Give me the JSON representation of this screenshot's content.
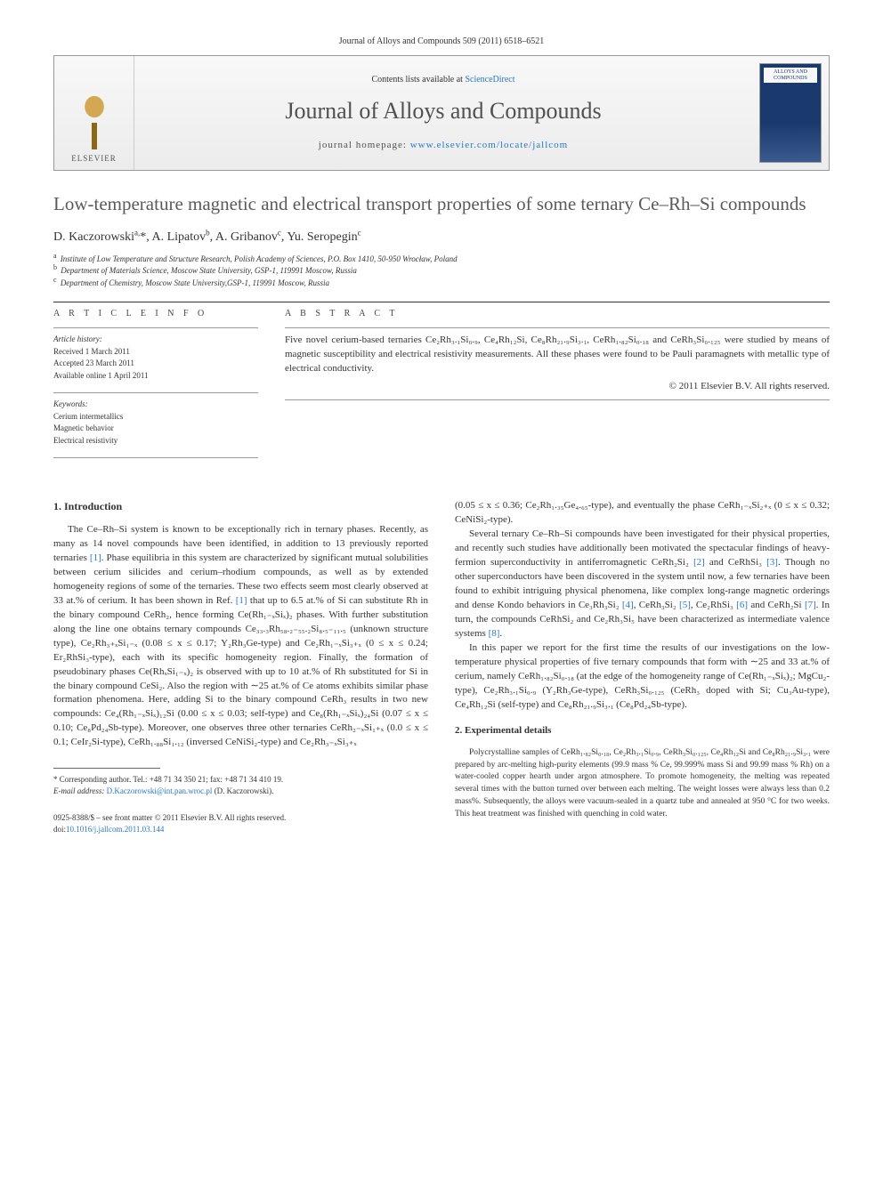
{
  "journal_header_line": "Journal of Alloys and Compounds 509 (2011) 6518–6521",
  "header": {
    "elsevier_label": "ELSEVIER",
    "contents_prefix": "Contents lists available at ",
    "contents_link": "ScienceDirect",
    "journal_title": "Journal of Alloys and Compounds",
    "homepage_prefix": "journal homepage: ",
    "homepage_link": "www.elsevier.com/locate/jallcom",
    "cover_text": "ALLOYS AND COMPOUNDS"
  },
  "article": {
    "title": "Low-temperature magnetic and electrical transport properties of some ternary Ce–Rh–Si compounds",
    "authors_html": "D. Kaczorowski<sup>a,</sup>*, A. Lipatov<sup>b</sup>, A. Gribanov<sup>c</sup>, Yu. Seropegin<sup>c</sup>",
    "affiliations": [
      {
        "sup": "a",
        "text": "Institute of Low Temperature and Structure Research, Polish Academy of Sciences, P.O. Box 1410, 50-950 Wrocław, Poland"
      },
      {
        "sup": "b",
        "text": "Department of Materials Science, Moscow State University, GSP-1, 119991 Moscow, Russia"
      },
      {
        "sup": "c",
        "text": "Department of Chemistry, Moscow State University,GSP-1, 119991 Moscow, Russia"
      }
    ]
  },
  "info": {
    "label": "A R T I C L E   I N F O",
    "history_label": "Article history:",
    "history": [
      "Received 1 March 2011",
      "Accepted 23 March 2011",
      "Available online 1 April 2011"
    ],
    "keywords_label": "Keywords:",
    "keywords": [
      "Cerium intermetallics",
      "Magnetic behavior",
      "Electrical resistivity"
    ]
  },
  "abstract": {
    "label": "A B S T R A C T",
    "text": "Five novel cerium-based ternaries Ce₂Rh₃.₁Si₀.₉, Ce₄Rh₁₂Si, Ce₈Rh₂₁.₉Si₃.₁, CeRh₁.₈₂Si₀.₁₈ and CeRh₃Si₀.₁₂₅ were studied by means of magnetic susceptibility and electrical resistivity measurements. All these phases were found to be Pauli paramagnets with metallic type of electrical conductivity.",
    "copyright": "© 2011 Elsevier B.V. All rights reserved."
  },
  "sections": {
    "intro_heading": "1. Introduction",
    "exp_heading": "2. Experimental details"
  },
  "body": {
    "col1_p1": "The Ce–Rh–Si system is known to be exceptionally rich in ternary phases. Recently, as many as 14 novel compounds have been identified, in addition to 13 previously reported ternaries [1]. Phase equilibria in this system are characterized by significant mutual solubilities between cerium silicides and cerium–rhodium compounds, as well as by extended homogeneity regions of some of the ternaries. These two effects seem most clearly observed at 33 at.% of cerium. It has been shown in Ref. [1] that up to 6.5 at.% of Si can substitute Rh in the binary compound CeRh₂, hence forming Ce(Rh₁₋ₓSiₓ)₂ phases. With further substitution along the line one obtains ternary compounds Ce₃₃.₃Rh₅₈.₂₋₅₅.₂Si₈.₅₋₁₁.₅ (unknown structure type), Ce₂Rh₃₊ₓSi₁₋ₓ (0.08 ≤ x ≤ 0.17; Y₂Rh₃Ge-type) and Ce₂Rh₁₋ₓSi₃₊ₓ (0 ≤ x ≤ 0.24; Er₂RhSi₃-type), each with its specific homogeneity region. Finally, the formation of pseudobinary phases Ce(RhₓSi₁₋ₓ)₂ is observed with up to 10 at.% of Rh substituted for Si in the binary compound CeSi₂. Also the region with ∼25 at.% of Ce atoms exhibits similar phase formation phenomena. Here, adding Si to the binary compound CeRh₃ results in two new compounds: Ce₄(Rh₁₋ₓSiₓ)₁₂Si (0.00 ≤ x ≤ 0.03; self-type) and Ce₈(Rh₁₋ₓSiₓ)₂₄Si (0.07 ≤ x ≤ 0.10; Ce₈Pd₂₄Sb-type). Moreover, one observes three other ternaries CeRh₂₋ₓSi₁₊ₓ (0.0 ≤ x ≤ 0.1; CeIr₂Si-type), CeRh₁.₈₈Si₁.₁₂ (inversed CeNiSi₂-type) and Ce₂Rh₃₋ₓSi₃₊ₓ",
    "col2_p1": "(0.05 ≤ x ≤ 0.36; Ce₂Rh₁.₃₅Ge₄.₆₅-type), and eventually the phase CeRh₁₋ₓSi₂₊ₓ (0 ≤ x ≤ 0.32; CeNiSi₂-type).",
    "col2_p2": "Several ternary Ce–Rh–Si compounds have been investigated for their physical properties, and recently such studies have additionally been motivated the spectacular findings of heavy-fermion superconductivity in antiferromagnetic CeRh₂Si₂ [2] and CeRhSi₃ [3]. Though no other superconductors have been discovered in the system until now, a few ternaries have been found to exhibit intriguing physical phenomena, like complex long-range magnetic orderings and dense Kondo behaviors in Ce₃Rh₃Si₂ [4], CeRh₃Si₂ [5], Ce₂RhSi₃ [6] and CeRh₂Si [7]. In turn, the compounds CeRhSi₂ and Ce₂Rh₃Si₅ have been characterized as intermediate valence systems [8].",
    "col2_p3": "In this paper we report for the first time the results of our investigations on the low-temperature physical properties of five ternary compounds that form with ∼25 and 33 at.% of cerium, namely CeRh₁.₈₂Si₀.₁₈ (at the edge of the homogeneity range of Ce(Rh₁₋ₓSiₓ)₂; MgCu₂-type), Ce₂Rh₃.₁Si₀.₉ (Y₂Rh₃Ge-type), CeRh₃Si₀.₁₂₅ (CeRh₃ doped with Si; Cu₃Au-type), Ce₄Rh₁₂Si (self-type) and Ce₈Rh₂₁.₉Si₃.₁ (Ce₈Pd₂₄Sb-type).",
    "col2_exp": "Polycrystalline samples of CeRh₁.₈₂Si₀.₁₈, Ce₂Rh₃.₁Si₀.₉, CeRh₃Si₀.₁₂₅, Ce₄Rh₁₂Si and Ce₈Rh₂₁.₉Si₃.₁ were prepared by arc-melting high-purity elements (99.9 mass % Ce, 99.999% mass Si and 99.99 mass % Rh) on a water-cooled copper hearth under argon atmosphere. To promote homogeneity, the melting was repeated several times with the button turned over between each melting. The weight losses were always less than 0.2 mass%. Subsequently, the alloys were vacuum-sealed in a quartz tube and annealed at 950 °C for two weeks. This heat treatment was finished with quenching in cold water."
  },
  "footnote": {
    "corr_prefix": "* Corresponding author. Tel.: +48 71 34 350 21; fax: +48 71 34 410 19.",
    "email_label": "E-mail address:",
    "email": "D.Kaczorowski@int.pan.wroc.pl",
    "email_person": "(D. Kaczorowski)."
  },
  "bottom": {
    "issn": "0925-8388/$ – see front matter © 2011 Elsevier B.V. All rights reserved.",
    "doi_prefix": "doi:",
    "doi": "10.1016/j.jallcom.2011.03.144"
  },
  "colors": {
    "link": "#2878c8",
    "text": "#333333",
    "title_gray": "#5a5a5a",
    "rule": "#333333",
    "cover_blue": "#1a3a6e"
  }
}
